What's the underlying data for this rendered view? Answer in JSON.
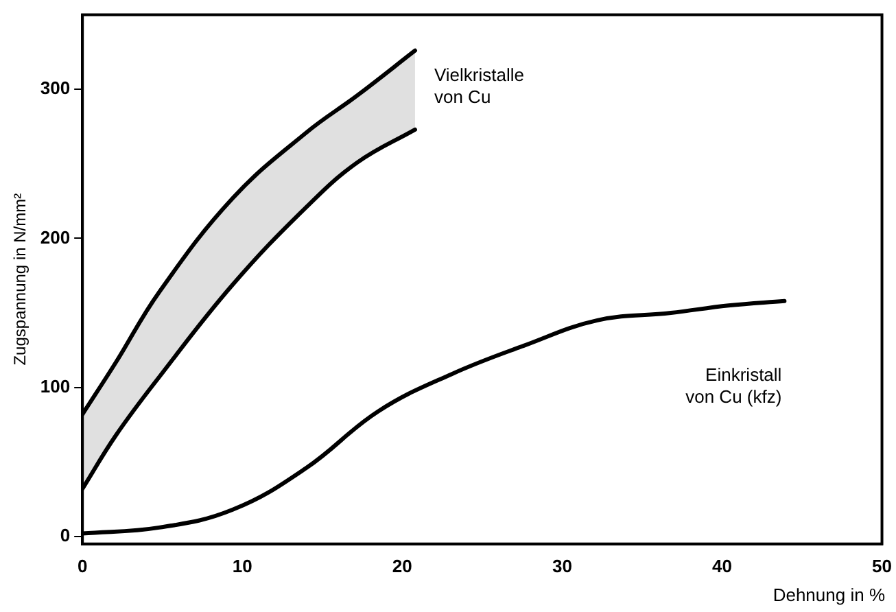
{
  "chart_data": {
    "type": "line",
    "xlabel": "Dehnung in %",
    "ylabel": "Zugspannung in N/mm²",
    "xlim": [
      0,
      50
    ],
    "xticks": [
      0,
      10,
      20,
      30,
      40,
      50
    ],
    "ylim": [
      -5,
      350
    ],
    "yticks": [
      0,
      100,
      200,
      300
    ],
    "grid": false,
    "legend": false,
    "marker": "none",
    "line_style": "solid",
    "series": [
      {
        "name": "Vielkristalle\nvon Cu",
        "color": "#000000",
        "x": [
          0,
          2.1,
          4.8,
          9.4,
          14,
          17.2,
          20.8
        ],
        "values": [
          82,
          117,
          164,
          227,
          271,
          296,
          326
        ],
        "lower": [
          32,
          68,
          107,
          169,
          221,
          251,
          273
        ],
        "upper": [
          82,
          117,
          164,
          227,
          271,
          296,
          326
        ]
      },
      {
        "color": "#000000",
        "x": [
          0,
          2.1,
          4.8,
          9.4,
          14,
          17.2,
          20.8
        ],
        "values": [
          32,
          68,
          107,
          169,
          221,
          251,
          273
        ]
      },
      {
        "name": "Einkristall\nvon Cu (kfz)",
        "color": "#000000",
        "x": [
          0,
          4.8,
          9.4,
          14,
          18.5,
          23.1,
          27.6,
          32.2,
          36.8,
          40.4,
          43.9
        ],
        "values": [
          2,
          6,
          18,
          46,
          84,
          109,
          128,
          145,
          150,
          155,
          158
        ]
      }
    ]
  }
}
